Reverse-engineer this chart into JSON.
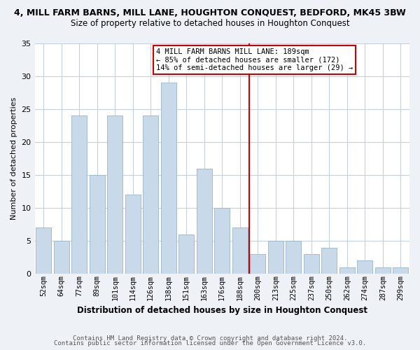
{
  "title": "4, MILL FARM BARNS, MILL LANE, HOUGHTON CONQUEST, BEDFORD, MK45 3BW",
  "subtitle": "Size of property relative to detached houses in Houghton Conquest",
  "xlabel": "Distribution of detached houses by size in Houghton Conquest",
  "ylabel": "Number of detached properties",
  "categories": [
    "52sqm",
    "64sqm",
    "77sqm",
    "89sqm",
    "101sqm",
    "114sqm",
    "126sqm",
    "138sqm",
    "151sqm",
    "163sqm",
    "176sqm",
    "188sqm",
    "200sqm",
    "213sqm",
    "225sqm",
    "237sqm",
    "250sqm",
    "262sqm",
    "274sqm",
    "287sqm",
    "299sqm"
  ],
  "values": [
    7,
    5,
    24,
    15,
    24,
    12,
    24,
    29,
    6,
    16,
    10,
    7,
    3,
    5,
    5,
    3,
    4,
    1,
    2,
    1,
    1
  ],
  "bar_color": "#c8daea",
  "bar_edge_color": "#9ab4cc",
  "vline_color": "#cc0000",
  "annotation_text": "4 MILL FARM BARNS MILL LANE: 189sqm\n← 85% of detached houses are smaller (172)\n14% of semi-detached houses are larger (29) →",
  "annotation_box_edge": "#cc0000",
  "ylim": [
    0,
    35
  ],
  "yticks": [
    0,
    5,
    10,
    15,
    20,
    25,
    30,
    35
  ],
  "footer1": "Contains HM Land Registry data © Crown copyright and database right 2024.",
  "footer2": "Contains public sector information licensed under the Open Government Licence v3.0.",
  "bg_color": "#eef2f7",
  "plot_bg_color": "#ffffff",
  "grid_color": "#c8d0dc"
}
